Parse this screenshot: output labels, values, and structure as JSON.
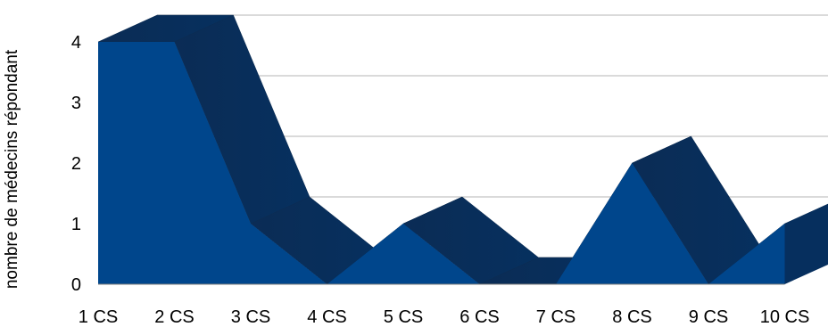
{
  "chart_data": {
    "type": "area",
    "three_d": true,
    "categories": [
      "1 CS",
      "2 CS",
      "3 CS",
      "4 CS",
      "5 CS",
      "6 CS",
      "7 CS",
      "8 CS",
      "9 CS",
      "10 CS"
    ],
    "values": [
      4,
      4,
      1,
      0,
      1,
      0,
      0,
      2,
      0,
      1
    ],
    "ylabel": "nombre de médecins répondant",
    "xlabel": "",
    "title": "",
    "ylim": [
      0,
      4
    ],
    "yticks": [
      "0",
      "1",
      "2",
      "3",
      "4"
    ],
    "grid": true,
    "legend": "none",
    "colors": {
      "front": "#00468c",
      "depth": "#0b2c55",
      "grid": "#b4b4b4",
      "axis": "#808080"
    }
  }
}
